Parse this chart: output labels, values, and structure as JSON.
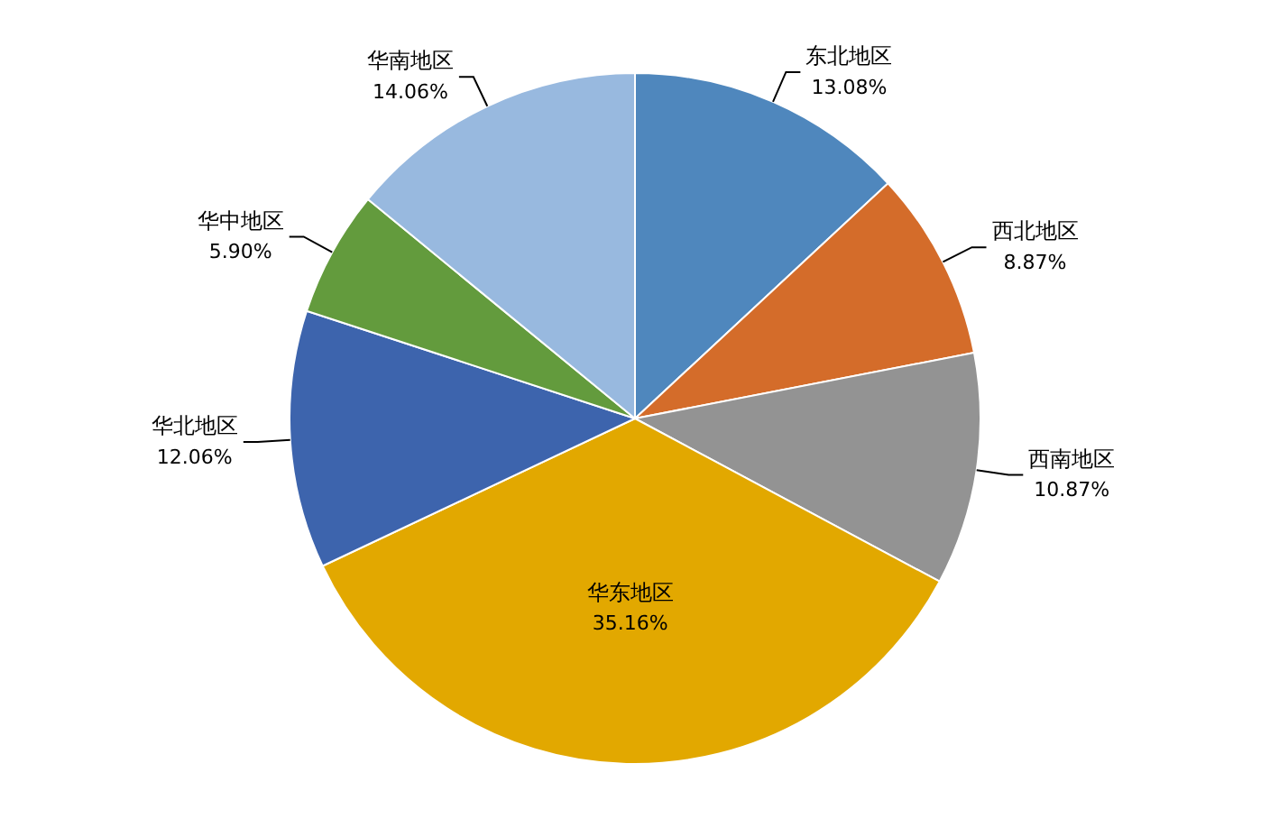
{
  "chart_data": {
    "type": "pie",
    "categories": [
      "东北地区",
      "西北地区",
      "西南地区",
      "华东地区",
      "华北地区",
      "华中地区",
      "华南地区"
    ],
    "values": [
      13.08,
      8.87,
      10.87,
      35.16,
      12.06,
      5.9,
      14.06
    ],
    "value_labels": [
      "13.08%",
      "8.87%",
      "10.87%",
      "35.16%",
      "12.06%",
      "5.90%",
      "14.06%"
    ],
    "colors": [
      "#4f87bd",
      "#d46c2a",
      "#939393",
      "#e2a800",
      "#3d64ad",
      "#639b3d",
      "#98b9df"
    ],
    "legend": false
  }
}
